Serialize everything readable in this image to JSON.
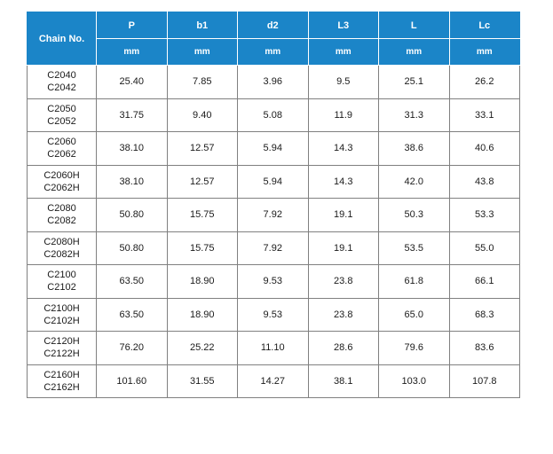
{
  "table": {
    "chain_header": "Chain No.",
    "columns": [
      {
        "name": "P",
        "unit": "mm"
      },
      {
        "name": "b1",
        "unit": "mm"
      },
      {
        "name": "d2",
        "unit": "mm"
      },
      {
        "name": "L3",
        "unit": "mm"
      },
      {
        "name": "L",
        "unit": "mm"
      },
      {
        "name": "Lc",
        "unit": "mm"
      }
    ],
    "rows": [
      {
        "chain": [
          "C2040",
          "C2042"
        ],
        "values": [
          "25.40",
          "7.85",
          "3.96",
          "9.5",
          "25.1",
          "26.2"
        ]
      },
      {
        "chain": [
          "C2050",
          "C2052"
        ],
        "values": [
          "31.75",
          "9.40",
          "5.08",
          "11.9",
          "31.3",
          "33.1"
        ]
      },
      {
        "chain": [
          "C2060",
          "C2062"
        ],
        "values": [
          "38.10",
          "12.57",
          "5.94",
          "14.3",
          "38.6",
          "40.6"
        ]
      },
      {
        "chain": [
          "C2060H",
          "C2062H"
        ],
        "values": [
          "38.10",
          "12.57",
          "5.94",
          "14.3",
          "42.0",
          "43.8"
        ]
      },
      {
        "chain": [
          "C2080",
          "C2082"
        ],
        "values": [
          "50.80",
          "15.75",
          "7.92",
          "19.1",
          "50.3",
          "53.3"
        ]
      },
      {
        "chain": [
          "C2080H",
          "C2082H"
        ],
        "values": [
          "50.80",
          "15.75",
          "7.92",
          "19.1",
          "53.5",
          "55.0"
        ]
      },
      {
        "chain": [
          "C2100",
          "C2102"
        ],
        "values": [
          "63.50",
          "18.90",
          "9.53",
          "23.8",
          "61.8",
          "66.1"
        ]
      },
      {
        "chain": [
          "C2100H",
          "C2102H"
        ],
        "values": [
          "63.50",
          "18.90",
          "9.53",
          "23.8",
          "65.0",
          "68.3"
        ]
      },
      {
        "chain": [
          "C2120H",
          "C2122H"
        ],
        "values": [
          "76.20",
          "25.22",
          "11.10",
          "28.6",
          "79.6",
          "83.6"
        ]
      },
      {
        "chain": [
          "C2160H",
          "C2162H"
        ],
        "values": [
          "101.60",
          "31.55",
          "14.27",
          "38.1",
          "103.0",
          "107.8"
        ]
      }
    ]
  },
  "colors": {
    "header_bg": "#1b85c8",
    "header_text": "#ffffff",
    "grid": "#808080"
  }
}
